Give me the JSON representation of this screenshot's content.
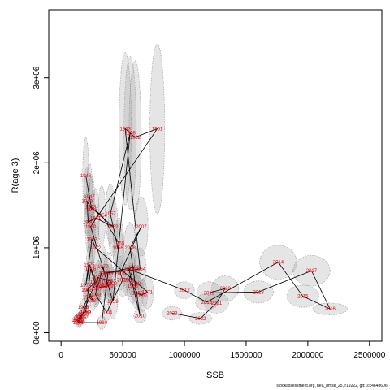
{
  "chart_data": {
    "type": "scatter",
    "title": "",
    "xlabel": "SSB",
    "ylabel": "R(age 3)",
    "xlim": [
      -100000,
      2600000
    ],
    "ylim": [
      -100000,
      3800000
    ],
    "x_ticks": [
      0,
      500000,
      1000000,
      1500000,
      2000000,
      2500000
    ],
    "x_tick_labels": [
      "0",
      "500000",
      "1000000",
      "1500000",
      "2000000",
      "2500000"
    ],
    "y_ticks": [
      0,
      1000000,
      2000000,
      3000000
    ],
    "y_tick_labels": [
      "0e+00",
      "1e+06",
      "2e+06",
      "3e+06"
    ],
    "grid": false,
    "legend": "none",
    "colors": {
      "labels": "#e8000b",
      "ellipse_fill": "#a0a0a0",
      "ellipse_stroke": "#606060",
      "trajectory": "#000000"
    },
    "series": [
      {
        "points": [
          {
            "year": "1946",
            "x": 200000,
            "y": 1850000,
            "sx": 25000,
            "sy": 450000
          },
          {
            "year": "1947",
            "x": 230000,
            "y": 1600000,
            "sx": 25000,
            "sy": 400000
          },
          {
            "year": "1948",
            "x": 250000,
            "y": 1450000,
            "sx": 25000,
            "sy": 400000
          },
          {
            "year": "1949",
            "x": 210000,
            "y": 1550000,
            "sx": 25000,
            "sy": 400000
          },
          {
            "year": "1950",
            "x": 220000,
            "y": 1300000,
            "sx": 25000,
            "sy": 350000
          },
          {
            "year": "1951",
            "x": 280000,
            "y": 1350000,
            "sx": 30000,
            "sy": 350000
          },
          {
            "year": "1952",
            "x": 420000,
            "y": 1250000,
            "sx": 40000,
            "sy": 350000
          },
          {
            "year": "1953",
            "x": 240000,
            "y": 1480000,
            "sx": 25000,
            "sy": 350000
          },
          {
            "year": "1954",
            "x": 330000,
            "y": 1380000,
            "sx": 30000,
            "sy": 350000
          },
          {
            "year": "1955",
            "x": 470000,
            "y": 1050000,
            "sx": 40000,
            "sy": 300000
          },
          {
            "year": "1956",
            "x": 460000,
            "y": 1000000,
            "sx": 40000,
            "sy": 300000
          },
          {
            "year": "1957",
            "x": 400000,
            "y": 1400000,
            "sx": 40000,
            "sy": 350000
          },
          {
            "year": "1958",
            "x": 560000,
            "y": 2350000,
            "sx": 50000,
            "sy": 900000
          },
          {
            "year": "1959",
            "x": 420000,
            "y": 370000,
            "sx": 40000,
            "sy": 200000
          },
          {
            "year": "1960",
            "x": 240000,
            "y": 1250000,
            "sx": 30000,
            "sy": 350000
          },
          {
            "year": "1961",
            "x": 780000,
            "y": 2400000,
            "sx": 60000,
            "sy": 1000000
          },
          {
            "year": "1962",
            "x": 600000,
            "y": 2300000,
            "sx": 50000,
            "sy": 900000
          },
          {
            "year": "1963",
            "x": 520000,
            "y": 2400000,
            "sx": 50000,
            "sy": 900000
          },
          {
            "year": "1964",
            "x": 640000,
            "y": 750000,
            "sx": 50000,
            "sy": 250000
          },
          {
            "year": "1965",
            "x": 350000,
            "y": 700000,
            "sx": 35000,
            "sy": 250000
          },
          {
            "year": "1966",
            "x": 590000,
            "y": 770000,
            "sx": 50000,
            "sy": 250000
          },
          {
            "year": "1967",
            "x": 550000,
            "y": 620000,
            "sx": 50000,
            "sy": 200000
          },
          {
            "year": "1968",
            "x": 580000,
            "y": 550000,
            "sx": 50000,
            "sy": 200000
          },
          {
            "year": "1969",
            "x": 620000,
            "y": 470000,
            "sx": 50000,
            "sy": 200000
          },
          {
            "year": "1970",
            "x": 650000,
            "y": 440000,
            "sx": 50000,
            "sy": 200000
          },
          {
            "year": "1971",
            "x": 700000,
            "y": 480000,
            "sx": 50000,
            "sy": 200000
          },
          {
            "year": "1972",
            "x": 280000,
            "y": 1000000,
            "sx": 30000,
            "sy": 300000
          },
          {
            "year": "1973",
            "x": 250000,
            "y": 1100000,
            "sx": 30000,
            "sy": 300000
          },
          {
            "year": "1974",
            "x": 200000,
            "y": 560000,
            "sx": 25000,
            "sy": 200000
          },
          {
            "year": "1975",
            "x": 230000,
            "y": 800000,
            "sx": 25000,
            "sy": 250000
          },
          {
            "year": "1976",
            "x": 300000,
            "y": 550000,
            "sx": 30000,
            "sy": 200000
          },
          {
            "year": "1977",
            "x": 340000,
            "y": 780000,
            "sx": 30000,
            "sy": 250000
          },
          {
            "year": "1978",
            "x": 370000,
            "y": 600000,
            "sx": 35000,
            "sy": 200000
          },
          {
            "year": "1979",
            "x": 380000,
            "y": 700000,
            "sx": 35000,
            "sy": 250000
          },
          {
            "year": "1980",
            "x": 330000,
            "y": 120000,
            "sx": 35000,
            "sy": 80000
          },
          {
            "year": "1981",
            "x": 140000,
            "y": 120000,
            "sx": 25000,
            "sy": 60000
          },
          {
            "year": "1982",
            "x": 150000,
            "y": 150000,
            "sx": 25000,
            "sy": 60000
          },
          {
            "year": "1983",
            "x": 150000,
            "y": 180000,
            "sx": 25000,
            "sy": 60000
          },
          {
            "year": "1984",
            "x": 200000,
            "y": 250000,
            "sx": 25000,
            "sy": 80000
          },
          {
            "year": "1985",
            "x": 180000,
            "y": 300000,
            "sx": 25000,
            "sy": 100000
          },
          {
            "year": "1986",
            "x": 220000,
            "y": 420000,
            "sx": 25000,
            "sy": 130000
          },
          {
            "year": "1987",
            "x": 260000,
            "y": 380000,
            "sx": 25000,
            "sy": 120000
          },
          {
            "year": "1988",
            "x": 210000,
            "y": 500000,
            "sx": 25000,
            "sy": 150000
          },
          {
            "year": "1989",
            "x": 280000,
            "y": 600000,
            "sx": 30000,
            "sy": 200000
          },
          {
            "year": "1990",
            "x": 150000,
            "y": 130000,
            "sx": 25000,
            "sy": 60000
          },
          {
            "year": "1991",
            "x": 130000,
            "y": 150000,
            "sx": 25000,
            "sy": 60000
          },
          {
            "year": "1992",
            "x": 160000,
            "y": 200000,
            "sx": 25000,
            "sy": 60000
          },
          {
            "year": "1993",
            "x": 180000,
            "y": 220000,
            "sx": 25000,
            "sy": 70000
          },
          {
            "year": "1994",
            "x": 140000,
            "y": 170000,
            "sx": 25000,
            "sy": 60000
          },
          {
            "year": "1995",
            "x": 200000,
            "y": 250000,
            "sx": 25000,
            "sy": 80000
          },
          {
            "year": "1996",
            "x": 240000,
            "y": 750000,
            "sx": 25000,
            "sy": 250000
          },
          {
            "year": "1997",
            "x": 290000,
            "y": 520000,
            "sx": 30000,
            "sy": 200000
          },
          {
            "year": "1998",
            "x": 330000,
            "y": 540000,
            "sx": 30000,
            "sy": 200000
          },
          {
            "year": "1999",
            "x": 380000,
            "y": 550000,
            "sx": 35000,
            "sy": 200000
          },
          {
            "year": "2000",
            "x": 410000,
            "y": 580000,
            "sx": 35000,
            "sy": 200000
          },
          {
            "year": "2001",
            "x": 400000,
            "y": 610000,
            "sx": 35000,
            "sy": 200000
          },
          {
            "year": "2002",
            "x": 300000,
            "y": 650000,
            "sx": 30000,
            "sy": 200000
          },
          {
            "year": "2003",
            "x": 280000,
            "y": 450000,
            "sx": 30000,
            "sy": 150000
          },
          {
            "year": "2004",
            "x": 370000,
            "y": 240000,
            "sx": 35000,
            "sy": 100000
          },
          {
            "year": "2005",
            "x": 500000,
            "y": 620000,
            "sx": 45000,
            "sy": 200000
          },
          {
            "year": "2006",
            "x": 480000,
            "y": 700000,
            "sx": 45000,
            "sy": 200000
          },
          {
            "year": "2007",
            "x": 650000,
            "y": 1250000,
            "sx": 55000,
            "sy": 350000
          },
          {
            "year": "2008",
            "x": 560000,
            "y": 1000000,
            "sx": 50000,
            "sy": 300000
          },
          {
            "year": "2009",
            "x": 600000,
            "y": 580000,
            "sx": 50000,
            "sy": 200000
          },
          {
            "year": "2010",
            "x": 640000,
            "y": 200000,
            "sx": 50000,
            "sy": 80000
          },
          {
            "year": "2011",
            "x": 550000,
            "y": 750000,
            "sx": 50000,
            "sy": 250000
          },
          {
            "year": "2012",
            "x": 1000000,
            "y": 500000,
            "sx": 80000,
            "sy": 100000
          },
          {
            "year": "2013",
            "x": 1180000,
            "y": 360000,
            "sx": 90000,
            "sy": 100000
          },
          {
            "year": "2014",
            "x": 1760000,
            "y": 830000,
            "sx": 150000,
            "sy": 200000
          },
          {
            "year": "2015",
            "x": 1960000,
            "y": 430000,
            "sx": 130000,
            "sy": 130000
          },
          {
            "year": "2016",
            "x": 2180000,
            "y": 280000,
            "sx": 140000,
            "sy": 70000
          },
          {
            "year": "2017",
            "x": 2030000,
            "y": 730000,
            "sx": 150000,
            "sy": 180000
          },
          {
            "year": "2018",
            "x": 1600000,
            "y": 480000,
            "sx": 120000,
            "sy": 130000
          },
          {
            "year": "2019",
            "x": 1200000,
            "y": 470000,
            "sx": 100000,
            "sy": 130000
          },
          {
            "year": "2020",
            "x": 1330000,
            "y": 520000,
            "sx": 110000,
            "sy": 150000
          },
          {
            "year": "2021",
            "x": 1260000,
            "y": 350000,
            "sx": 100000,
            "sy": 120000
          },
          {
            "year": "2022",
            "x": 1130000,
            "y": 170000,
            "sx": 90000,
            "sy": 70000
          },
          {
            "year": "2023",
            "x": 900000,
            "y": 230000,
            "sx": 80000,
            "sy": 80000
          }
        ]
      }
    ],
    "source_note": "stockassessment.org, nea_bmsk_25, r19222, git:1cc464b606f"
  }
}
